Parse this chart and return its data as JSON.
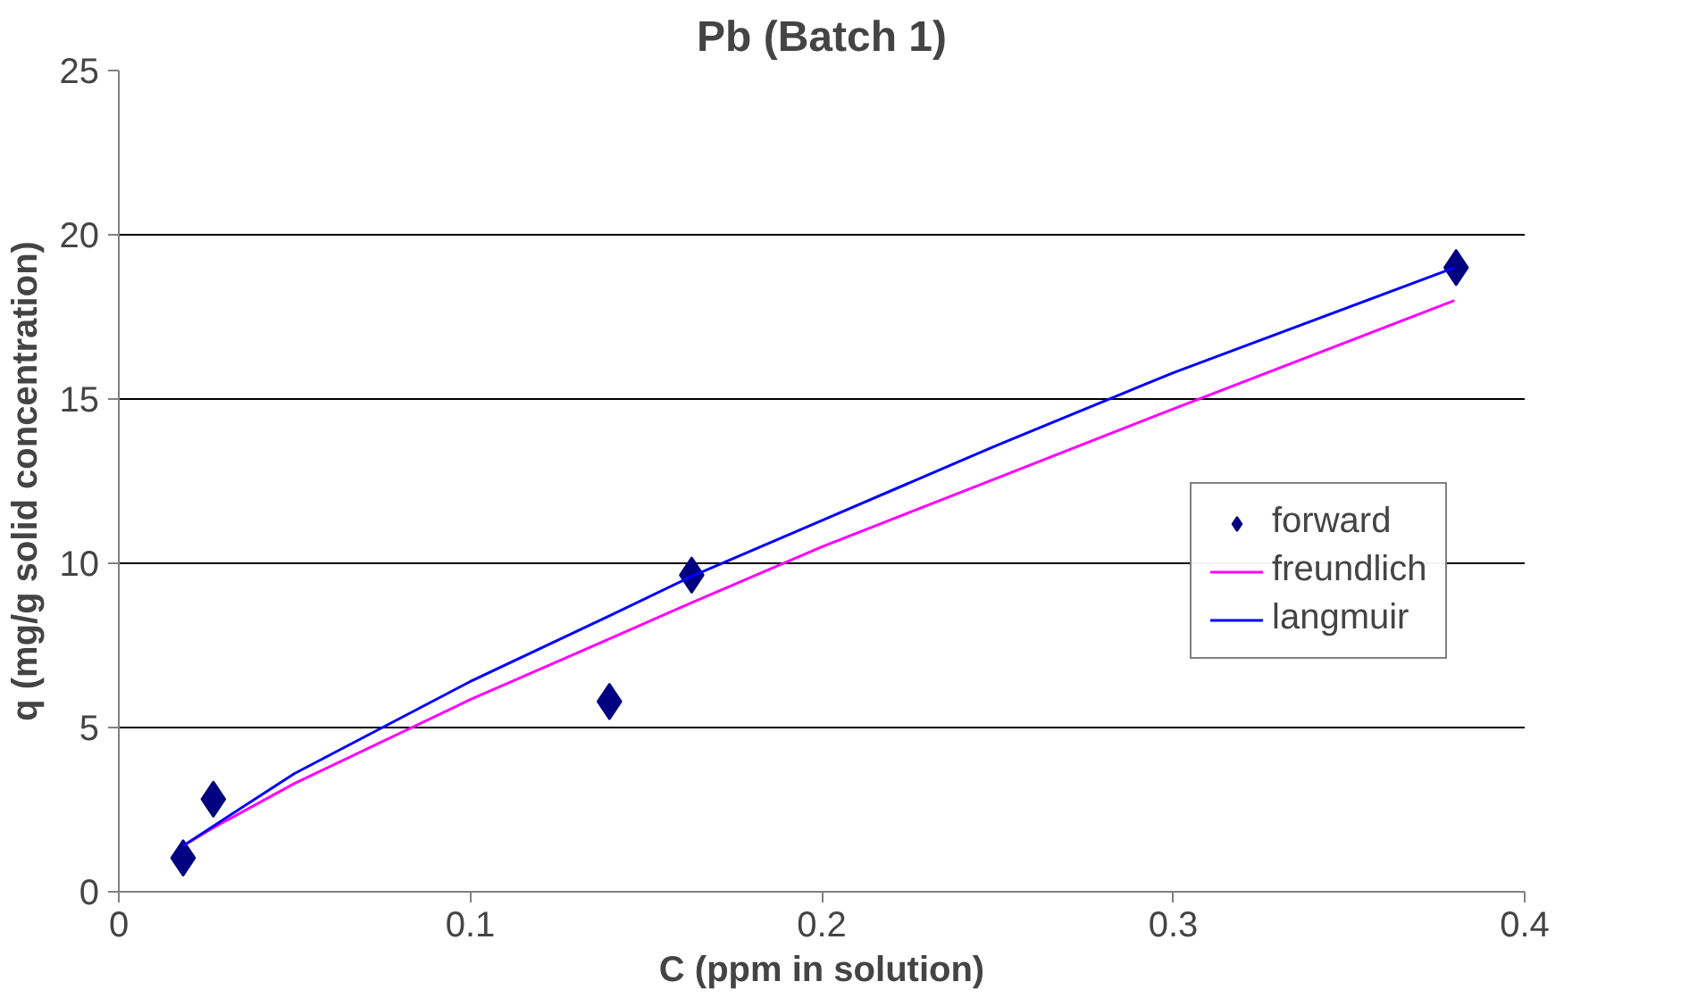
{
  "chart_data": {
    "type": "scatter",
    "title": "Pb (Batch 1)",
    "xlabel": "C (ppm in solution)",
    "ylabel": "q (mg/g solid concentration)",
    "xlim": [
      0,
      0.4
    ],
    "xticks": [
      0,
      0.1,
      0.2,
      0.3,
      0.4
    ],
    "ylim": [
      0,
      25
    ],
    "yticks": [
      0,
      5,
      10,
      15,
      20,
      25
    ],
    "grid": "y",
    "legend": "right",
    "series": [
      {
        "name": "forward",
        "marker": "diamond",
        "color": "#000080",
        "x": [
          0.0183,
          0.0269,
          0.1396,
          0.163,
          0.3805
        ],
        "values": [
          1.03,
          2.82,
          5.79,
          9.64,
          19.0
        ]
      },
      {
        "name": "freundlich",
        "type": "line",
        "color": "#ff00ff",
        "x": [
          0.0183,
          0.0269,
          0.05,
          0.1,
          0.1396,
          0.163,
          0.2,
          0.25,
          0.3,
          0.38
        ],
        "values": [
          1.4,
          1.95,
          3.3,
          5.85,
          7.7,
          8.8,
          10.5,
          12.6,
          14.7,
          18.0
        ]
      },
      {
        "name": "langmuir",
        "type": "line",
        "color": "#0000ff",
        "x": [
          0.0183,
          0.0269,
          0.05,
          0.1,
          0.1396,
          0.163,
          0.2,
          0.25,
          0.3,
          0.38
        ],
        "values": [
          1.4,
          2.0,
          3.6,
          6.4,
          8.4,
          9.6,
          11.3,
          13.6,
          15.8,
          19.0
        ]
      }
    ]
  }
}
